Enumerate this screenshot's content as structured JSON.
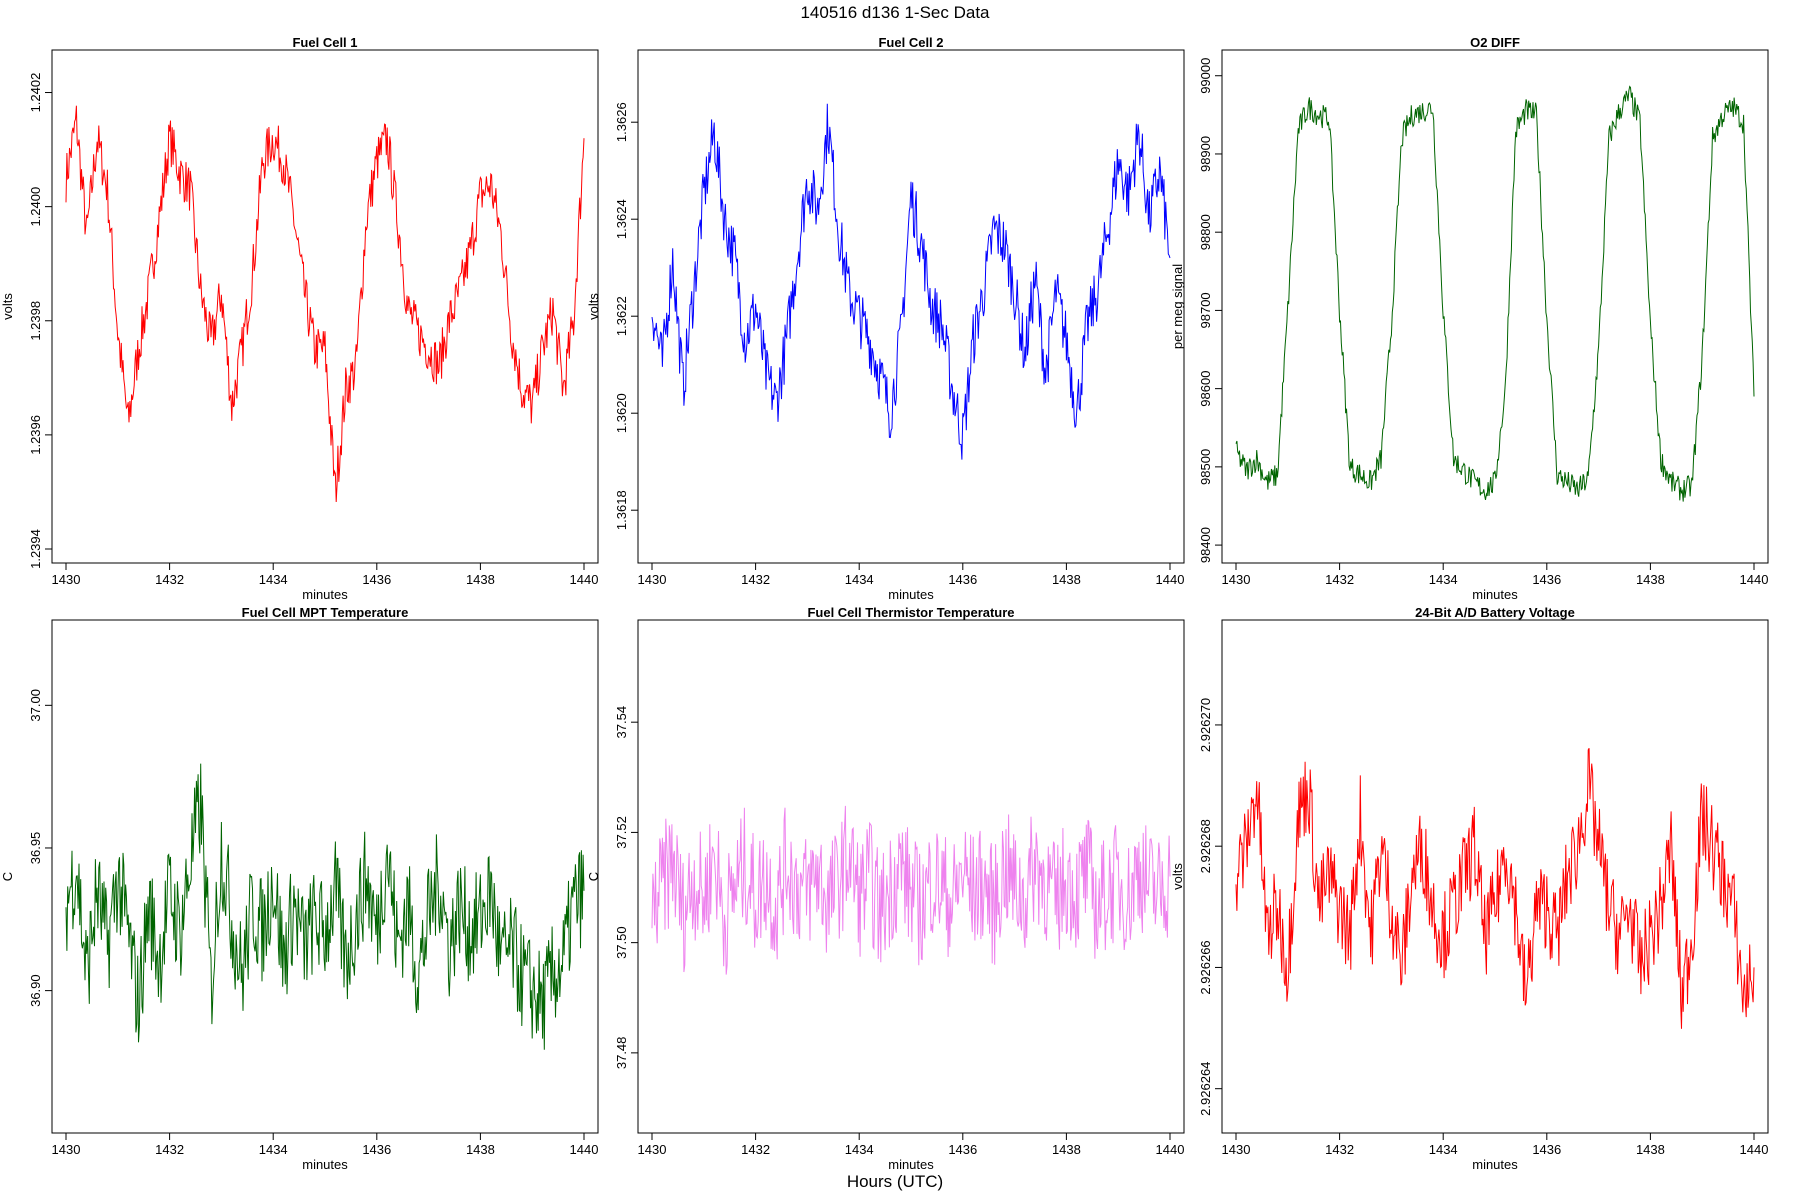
{
  "figure": {
    "title": "140516   d136   1-Sec Data",
    "xlabel": "Hours (UTC)"
  },
  "chart_data": [
    {
      "type": "line",
      "title": "Fuel Cell 1",
      "xlabel": "minutes",
      "ylabel": "volts",
      "xlim": [
        1430,
        1440
      ],
      "ylim": [
        1.2394,
        1.24025
      ],
      "xticks": [
        "1430",
        "1432",
        "1434",
        "1436",
        "1438",
        "1440"
      ],
      "yticks": [
        "1.2394",
        "1.2396",
        "1.2398",
        "1.2400",
        "1.2402"
      ],
      "color": "#ff0000",
      "series": [
        {
          "x": [
            1430.0,
            1430.2,
            1430.4,
            1430.6,
            1430.8,
            1431.0,
            1431.2,
            1431.4,
            1431.6,
            1431.8,
            1432.0,
            1432.2,
            1432.4,
            1432.6,
            1432.8,
            1433.0,
            1433.2,
            1433.4,
            1433.6,
            1433.8,
            1434.0,
            1434.2,
            1434.4,
            1434.6,
            1434.8,
            1435.0,
            1435.2,
            1435.4,
            1435.6,
            1435.8,
            1436.0,
            1436.2,
            1436.4,
            1436.6,
            1436.8,
            1437.0,
            1437.2,
            1437.4,
            1437.6,
            1437.8,
            1438.0,
            1438.2,
            1438.4,
            1438.6,
            1438.8,
            1439.0,
            1439.2,
            1439.4,
            1439.6,
            1439.8,
            1440.0
          ],
          "values": [
            1.24005,
            1.24015,
            1.23995,
            1.24012,
            1.24003,
            1.23978,
            1.23962,
            1.23975,
            1.23985,
            1.23998,
            1.24012,
            1.24006,
            1.24003,
            1.23985,
            1.23976,
            1.23985,
            1.23965,
            1.23975,
            1.23988,
            1.24008,
            1.24012,
            1.24008,
            1.23998,
            1.23985,
            1.23975,
            1.23975,
            1.2395,
            1.23968,
            1.23972,
            1.23998,
            1.24008,
            1.24012,
            1.23998,
            1.23982,
            1.23978,
            1.23975,
            1.23972,
            1.2398,
            1.23985,
            1.23992,
            1.24002,
            1.24004,
            1.23995,
            1.23978,
            1.23968,
            1.23965,
            1.23975,
            1.23982,
            1.23968,
            1.2398,
            1.24012
          ]
        }
      ]
    },
    {
      "type": "line",
      "title": "Fuel Cell 2",
      "xlabel": "minutes",
      "ylabel": "volts",
      "xlim": [
        1430,
        1440
      ],
      "ylim": [
        1.36172,
        1.36272
      ],
      "xticks": [
        "1430",
        "1432",
        "1434",
        "1436",
        "1438",
        "1440"
      ],
      "yticks": [
        "1.3618",
        "1.3620",
        "1.3622",
        "1.3624",
        "1.3626"
      ],
      "color": "#0000ff",
      "series": [
        {
          "x": [
            1430.0,
            1430.2,
            1430.4,
            1430.6,
            1430.8,
            1431.0,
            1431.2,
            1431.4,
            1431.6,
            1431.8,
            1432.0,
            1432.2,
            1432.4,
            1432.6,
            1432.8,
            1433.0,
            1433.2,
            1433.4,
            1433.6,
            1433.8,
            1434.0,
            1434.2,
            1434.4,
            1434.6,
            1434.8,
            1435.0,
            1435.2,
            1435.4,
            1435.6,
            1435.8,
            1436.0,
            1436.2,
            1436.4,
            1436.6,
            1436.8,
            1437.0,
            1437.2,
            1437.4,
            1437.6,
            1437.8,
            1438.0,
            1438.2,
            1438.4,
            1438.6,
            1438.8,
            1439.0,
            1439.2,
            1439.4,
            1439.6,
            1439.8,
            1440.0
          ],
          "values": [
            1.36222,
            1.3621,
            1.36232,
            1.36205,
            1.36225,
            1.36245,
            1.36258,
            1.3624,
            1.36232,
            1.36215,
            1.36222,
            1.36208,
            1.36202,
            1.36215,
            1.36232,
            1.36248,
            1.36242,
            1.3626,
            1.36238,
            1.36225,
            1.3622,
            1.36215,
            1.36208,
            1.362,
            1.36215,
            1.36245,
            1.36235,
            1.36222,
            1.36218,
            1.36205,
            1.36195,
            1.36215,
            1.36225,
            1.36238,
            1.36235,
            1.36225,
            1.36212,
            1.36228,
            1.36208,
            1.36225,
            1.36215,
            1.362,
            1.36218,
            1.36225,
            1.36238,
            1.36252,
            1.36245,
            1.36258,
            1.3624,
            1.3625,
            1.36232
          ]
        }
      ]
    },
    {
      "type": "line",
      "title": "O2 DIFF",
      "xlabel": "minutes",
      "ylabel": "per meg signal",
      "xlim": [
        1430,
        1440
      ],
      "ylim": [
        98395,
        99015
      ],
      "xticks": [
        "1430",
        "1432",
        "1434",
        "1436",
        "1438",
        "1440"
      ],
      "yticks": [
        "98400",
        "98500",
        "98600",
        "98700",
        "98800",
        "98900",
        "99000"
      ],
      "color": "#006400",
      "series": [
        {
          "x": [
            1430.0,
            1430.2,
            1430.4,
            1430.6,
            1430.8,
            1431.0,
            1431.2,
            1431.4,
            1431.6,
            1431.8,
            1432.0,
            1432.2,
            1432.4,
            1432.6,
            1432.8,
            1433.0,
            1433.2,
            1433.4,
            1433.6,
            1433.8,
            1434.0,
            1434.2,
            1434.4,
            1434.6,
            1434.8,
            1435.0,
            1435.2,
            1435.4,
            1435.6,
            1435.8,
            1436.0,
            1436.2,
            1436.4,
            1436.6,
            1436.8,
            1437.0,
            1437.2,
            1437.4,
            1437.6,
            1437.8,
            1438.0,
            1438.2,
            1438.4,
            1438.6,
            1438.8,
            1439.0,
            1439.2,
            1439.4,
            1439.6,
            1439.8,
            1440.0
          ],
          "values": [
            98520,
            98495,
            98510,
            98480,
            98490,
            98700,
            98930,
            98960,
            98950,
            98945,
            98700,
            98500,
            98490,
            98480,
            98510,
            98680,
            98920,
            98950,
            98955,
            98960,
            98700,
            98510,
            98495,
            98480,
            98470,
            98480,
            98600,
            98930,
            98955,
            98950,
            98690,
            98490,
            98480,
            98470,
            98485,
            98650,
            98920,
            98955,
            98975,
            98940,
            98680,
            98510,
            98480,
            98470,
            98475,
            98640,
            98920,
            98950,
            98960,
            98940,
            98590
          ]
        }
      ]
    },
    {
      "type": "line",
      "title": "Fuel Cell MPT Temperature",
      "xlabel": "minutes",
      "ylabel": "C",
      "xlim": [
        1430,
        1440
      ],
      "ylim": [
        36.855,
        37.025
      ],
      "xticks": [
        "1430",
        "1432",
        "1434",
        "1436",
        "1438",
        "1440"
      ],
      "yticks": [
        "36.90",
        "36.95",
        "37.00"
      ],
      "color": "#006400",
      "series": [
        {
          "x": [
            1430.0,
            1430.2,
            1430.4,
            1430.6,
            1430.8,
            1431.0,
            1431.2,
            1431.4,
            1431.6,
            1431.8,
            1432.0,
            1432.2,
            1432.4,
            1432.6,
            1432.8,
            1433.0,
            1433.2,
            1433.4,
            1433.6,
            1433.8,
            1434.0,
            1434.2,
            1434.4,
            1434.6,
            1434.8,
            1435.0,
            1435.2,
            1435.4,
            1435.6,
            1435.8,
            1436.0,
            1436.2,
            1436.4,
            1436.6,
            1436.8,
            1437.0,
            1437.2,
            1437.4,
            1437.6,
            1437.8,
            1438.0,
            1438.2,
            1438.4,
            1438.6,
            1438.8,
            1439.0,
            1439.2,
            1439.4,
            1439.6,
            1439.8,
            1440.0
          ],
          "values": [
            36.93,
            36.945,
            36.905,
            36.935,
            36.915,
            36.94,
            36.92,
            36.895,
            36.93,
            36.91,
            36.935,
            36.92,
            36.945,
            36.965,
            36.9,
            36.95,
            36.925,
            36.905,
            36.93,
            36.92,
            36.94,
            36.91,
            36.93,
            36.915,
            36.925,
            36.92,
            36.935,
            36.91,
            36.925,
            36.94,
            36.92,
            36.95,
            36.915,
            36.93,
            36.905,
            36.925,
            36.94,
            36.915,
            36.93,
            36.92,
            36.925,
            36.935,
            36.91,
            36.915,
            36.905,
            36.9,
            36.895,
            36.905,
            36.91,
            36.93,
            36.935
          ]
        }
      ]
    },
    {
      "type": "line",
      "title": "Fuel Cell Thermistor Temperature",
      "xlabel": "minutes",
      "ylabel": "C",
      "xlim": [
        1430,
        1440
      ],
      "ylim": [
        37.468,
        37.556
      ],
      "xticks": [
        "1430",
        "1432",
        "1434",
        "1436",
        "1438",
        "1440"
      ],
      "yticks": [
        "37.48",
        "37.50",
        "37.52",
        "37.54"
      ],
      "color": "#ee82ee",
      "series": [
        {
          "x": [
            1430.0,
            1430.2,
            1430.4,
            1430.6,
            1430.8,
            1431.0,
            1431.2,
            1431.4,
            1431.6,
            1431.8,
            1432.0,
            1432.2,
            1432.4,
            1432.6,
            1432.8,
            1433.0,
            1433.2,
            1433.4,
            1433.6,
            1433.8,
            1434.0,
            1434.2,
            1434.4,
            1434.6,
            1434.8,
            1435.0,
            1435.2,
            1435.4,
            1435.6,
            1435.8,
            1436.0,
            1436.2,
            1436.4,
            1436.6,
            1436.8,
            1437.0,
            1437.2,
            1437.4,
            1437.6,
            1437.8,
            1438.0,
            1438.2,
            1438.4,
            1438.6,
            1438.8,
            1439.0,
            1439.2,
            1439.4,
            1439.6,
            1439.8,
            1440.0
          ],
          "values": [
            37.505,
            37.51,
            37.515,
            37.505,
            37.512,
            37.508,
            37.516,
            37.504,
            37.51,
            37.514,
            37.508,
            37.512,
            37.506,
            37.515,
            37.51,
            37.509,
            37.513,
            37.507,
            37.511,
            37.516,
            37.508,
            37.512,
            37.505,
            37.51,
            37.514,
            37.509,
            37.506,
            37.512,
            37.51,
            37.507,
            37.513,
            37.509,
            37.511,
            37.506,
            37.514,
            37.51,
            37.508,
            37.515,
            37.511,
            37.507,
            37.512,
            37.509,
            37.513,
            37.506,
            37.51,
            37.511,
            37.508,
            37.514,
            37.51,
            37.509,
            37.512
          ]
        }
      ]
    },
    {
      "type": "line",
      "title": "24-Bit A/D Battery Voltage",
      "xlabel": "minutes",
      "ylabel": "volts",
      "xlim": [
        1430,
        1440
      ],
      "ylim": [
        2.9262635,
        2.9262715
      ],
      "xticks": [
        "1430",
        "1432",
        "1434",
        "1436",
        "1438",
        "1440"
      ],
      "yticks": [
        "2.926264",
        "2.926266",
        "2.926268",
        "2.926270"
      ],
      "color": "#ff0000",
      "series": [
        {
          "x": [
            1430.0,
            1430.2,
            1430.4,
            1430.6,
            1430.8,
            1431.0,
            1431.2,
            1431.4,
            1431.6,
            1431.8,
            1432.0,
            1432.2,
            1432.4,
            1432.6,
            1432.8,
            1433.0,
            1433.2,
            1433.4,
            1433.6,
            1433.8,
            1434.0,
            1434.2,
            1434.4,
            1434.6,
            1434.8,
            1435.0,
            1435.2,
            1435.4,
            1435.6,
            1435.8,
            1436.0,
            1436.2,
            1436.4,
            1436.6,
            1436.8,
            1437.0,
            1437.2,
            1437.4,
            1437.6,
            1437.8,
            1438.0,
            1438.2,
            1438.4,
            1438.6,
            1438.8,
            1439.0,
            1439.2,
            1439.4,
            1439.6,
            1439.8,
            1440.0
          ],
          "values": [
            2.9262675,
            2.926268,
            2.926269,
            2.9262665,
            2.926267,
            2.926266,
            2.9262685,
            2.926269,
            2.926267,
            2.9262675,
            2.926267,
            2.9262665,
            2.9262685,
            2.9262665,
            2.926268,
            2.926267,
            2.926266,
            2.9262675,
            2.926268,
            2.926267,
            2.9262665,
            2.926267,
            2.9262675,
            2.926268,
            2.9262665,
            2.926267,
            2.926268,
            2.926267,
            2.9262655,
            2.926267,
            2.926267,
            2.9262665,
            2.9262675,
            2.926268,
            2.926269,
            2.926268,
            2.926267,
            2.9262665,
            2.926267,
            2.926266,
            2.9262665,
            2.926267,
            2.926268,
            2.9262655,
            2.9262665,
            2.9262685,
            2.926268,
            2.9262675,
            2.926267,
            2.9262655,
            2.926266
          ]
        }
      ]
    }
  ]
}
